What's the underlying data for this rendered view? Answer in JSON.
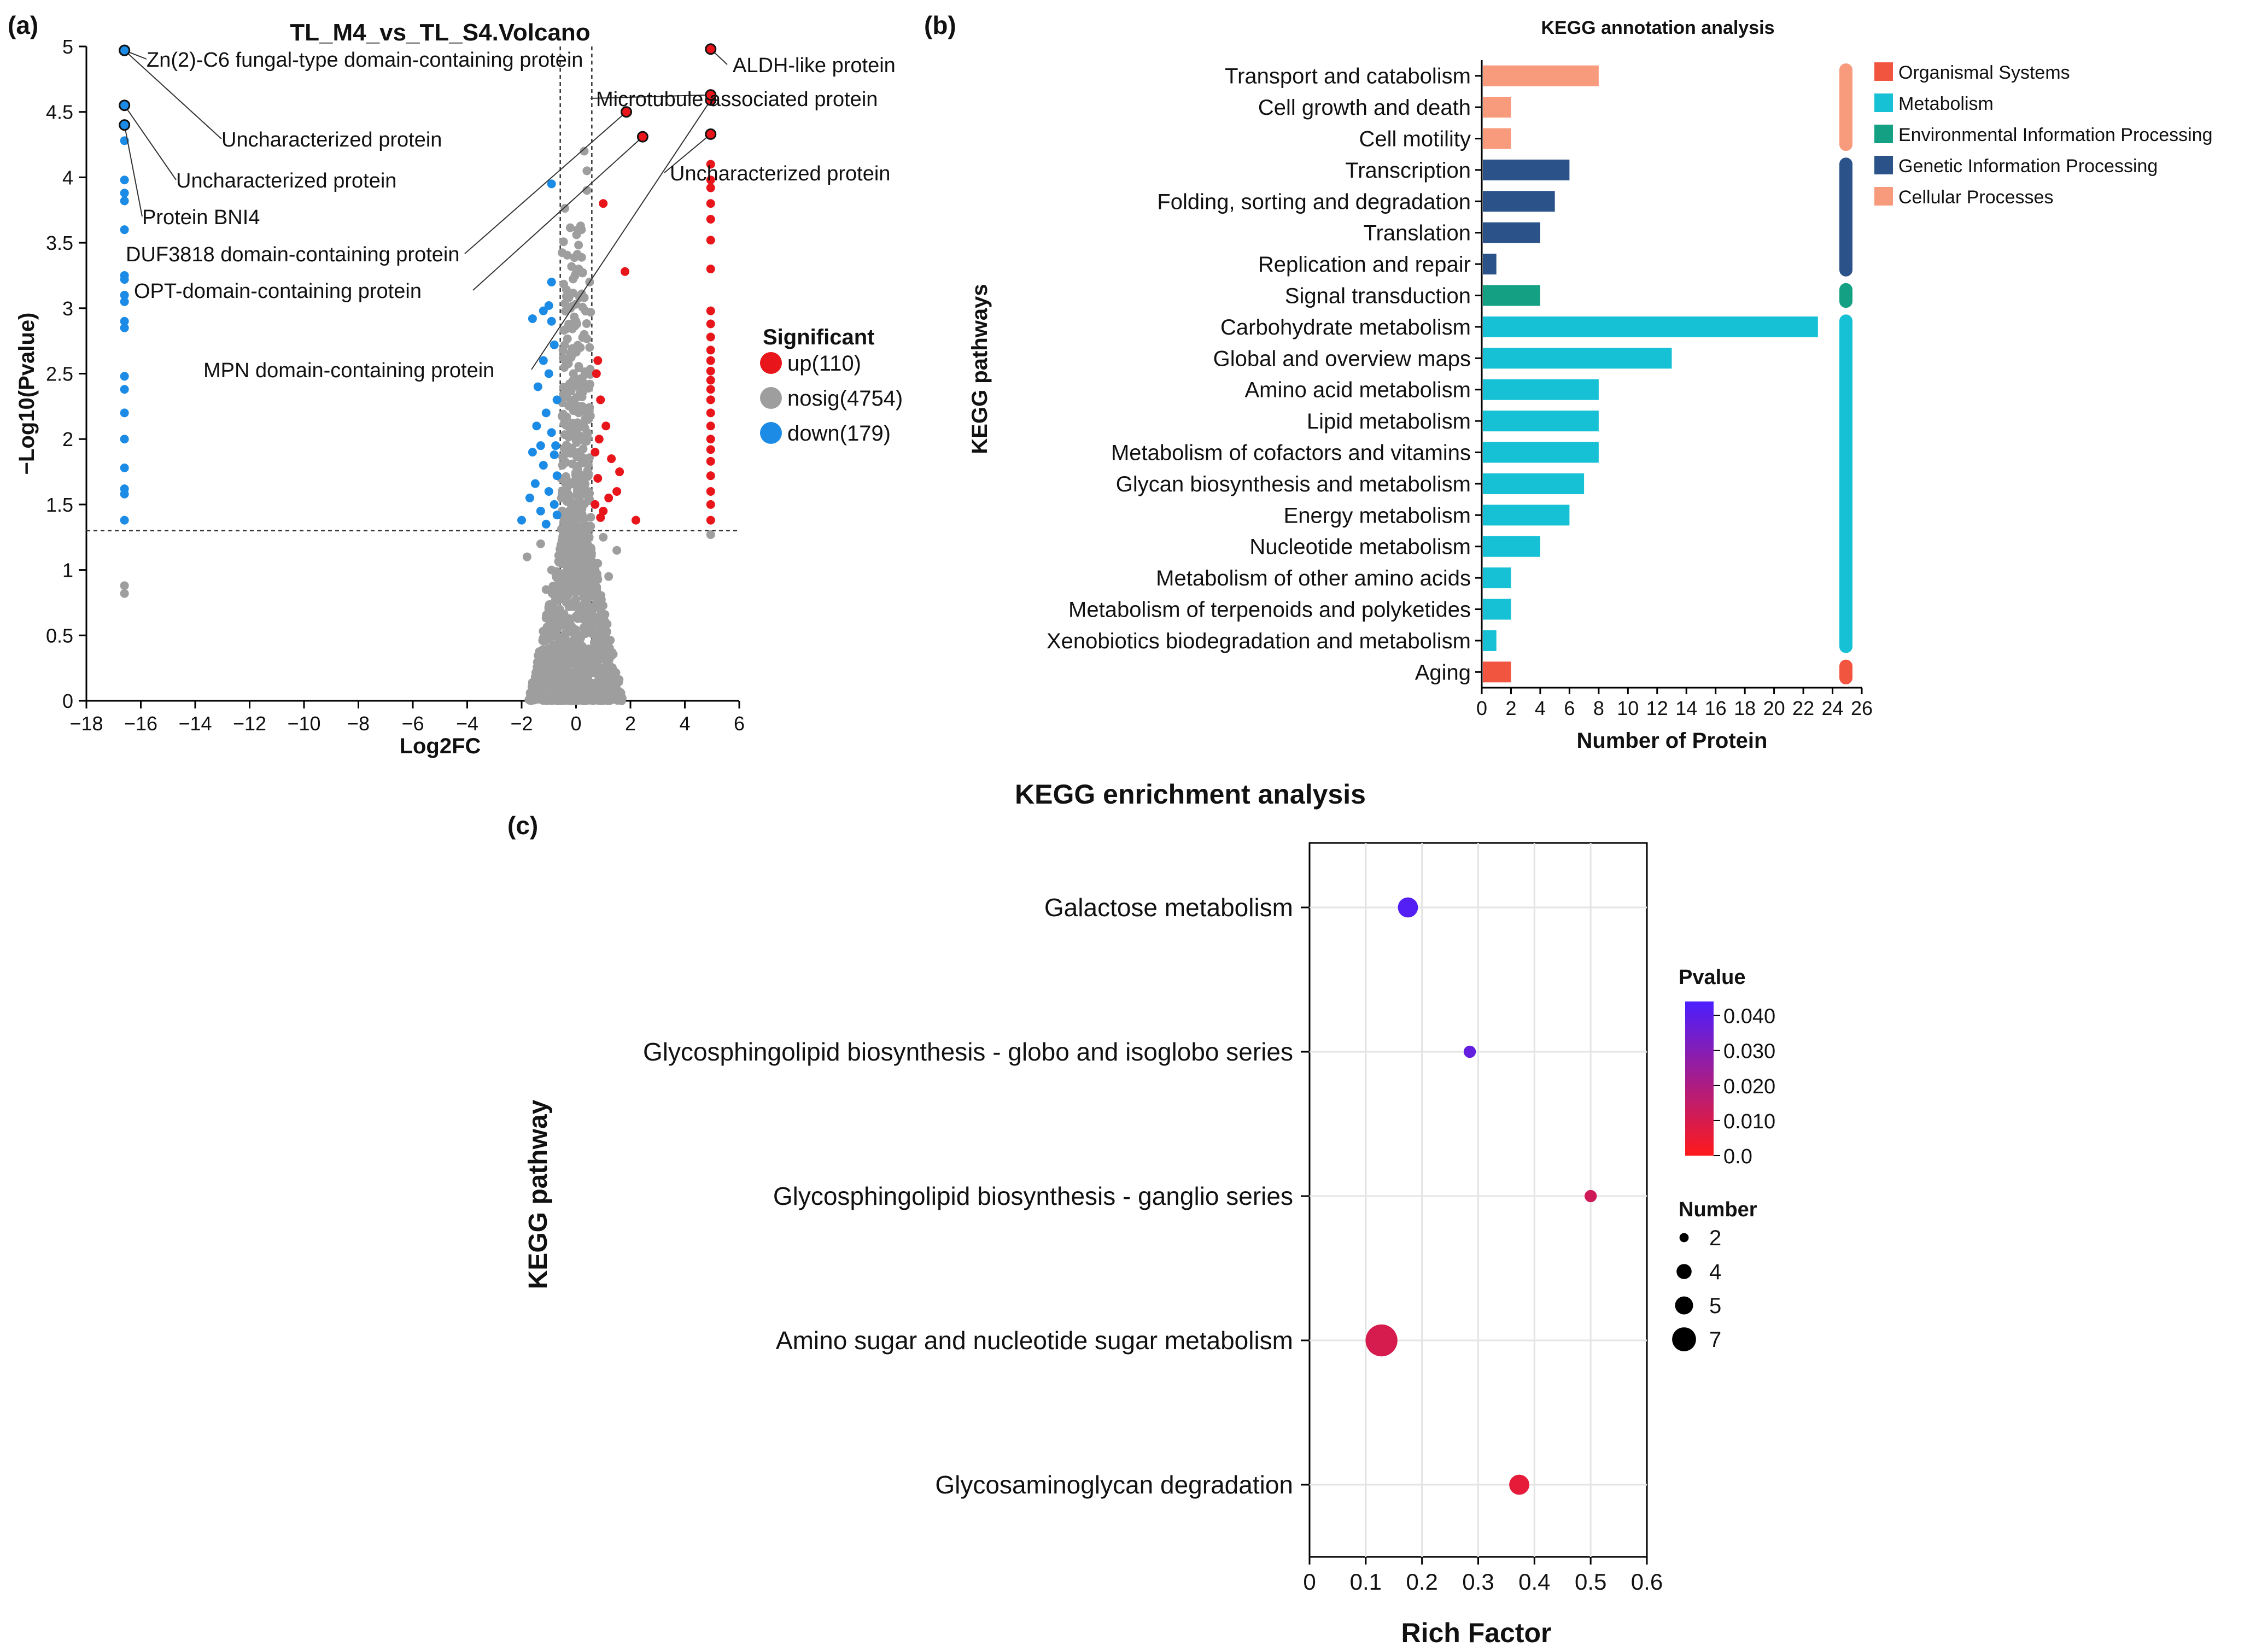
{
  "panels": {
    "a": "(a)",
    "b": "(b)",
    "c": "(c)"
  },
  "colors": {
    "up": "#e8151b",
    "nosig": "#9e9e9e",
    "down": "#1b8be6",
    "organismal": "#f2553f",
    "metabolism": "#16c1d6",
    "environmental": "#14a083",
    "genetic": "#2b5389",
    "cellular": "#f89a7c",
    "grad_low": "#ff1a1a",
    "grad_high": "#4b1fff"
  },
  "chart_data": [
    {
      "id": "volcano",
      "type": "scatter",
      "title": "TL_M4_vs_TL_S4.Volcano",
      "xlabel": "Log2FC",
      "ylabel": "−Log10(Pvalue)",
      "xlim": [
        -18,
        6
      ],
      "ylim": [
        0,
        5
      ],
      "xticks": [
        "−18",
        "−16",
        "−14",
        "−12",
        "−10",
        "−8",
        "−6",
        "−4",
        "−2",
        "0",
        "2",
        "4",
        "6"
      ],
      "yticks": [
        "0",
        "0.5",
        "1",
        "1.5",
        "2",
        "2.5",
        "3",
        "3.5",
        "4",
        "4.5",
        "5"
      ],
      "thresholds": {
        "pvalue_line": 1.3,
        "fc_lines": [
          -0.58,
          0.58
        ]
      },
      "legend_title": "Significant",
      "legend": [
        {
          "key": "up",
          "label": "up(110)"
        },
        {
          "key": "nosig",
          "label": "nosig(4754)"
        },
        {
          "key": "down",
          "label": "down(179)"
        }
      ],
      "series": [
        {
          "name": "down",
          "points": [
            [
              -16.6,
              4.97
            ],
            [
              -16.6,
              4.55
            ],
            [
              -16.6,
              4.4
            ],
            [
              -16.6,
              4.28
            ],
            [
              -16.6,
              3.98
            ],
            [
              -16.6,
              3.88
            ],
            [
              -16.6,
              3.82
            ],
            [
              -16.6,
              3.6
            ],
            [
              -16.6,
              3.25
            ],
            [
              -16.6,
              3.22
            ],
            [
              -16.6,
              3.1
            ],
            [
              -16.6,
              3.05
            ],
            [
              -16.6,
              2.9
            ],
            [
              -16.6,
              2.85
            ],
            [
              -16.6,
              2.48
            ],
            [
              -16.6,
              2.38
            ],
            [
              -16.6,
              2.2
            ],
            [
              -16.6,
              2.0
            ],
            [
              -16.6,
              1.78
            ],
            [
              -16.6,
              1.62
            ],
            [
              -16.6,
              1.58
            ],
            [
              -16.6,
              1.38
            ],
            [
              -0.9,
              3.95
            ],
            [
              -0.9,
              3.2
            ],
            [
              -1.0,
              3.02
            ],
            [
              -1.2,
              2.98
            ],
            [
              -1.6,
              2.92
            ],
            [
              -0.8,
              2.72
            ],
            [
              -1.0,
              2.5
            ],
            [
              -1.4,
              2.4
            ],
            [
              -0.7,
              2.3
            ],
            [
              -1.1,
              2.2
            ],
            [
              -0.9,
              2.05
            ],
            [
              -1.3,
              1.95
            ],
            [
              -0.8,
              1.88
            ],
            [
              -1.2,
              1.8
            ],
            [
              -0.7,
              1.72
            ],
            [
              -1.5,
              1.66
            ],
            [
              -1.0,
              1.6
            ],
            [
              -1.7,
              1.55
            ],
            [
              -0.8,
              1.5
            ],
            [
              -1.3,
              1.45
            ],
            [
              -0.7,
              1.42
            ],
            [
              -2.0,
              1.38
            ],
            [
              -1.1,
              1.35
            ],
            [
              -0.9,
              2.9
            ],
            [
              -1.2,
              2.6
            ],
            [
              -0.75,
              1.95
            ],
            [
              -1.6,
              1.9
            ],
            [
              -1.45,
              2.1
            ]
          ]
        },
        {
          "name": "up",
          "points": [
            [
              4.95,
              4.98
            ],
            [
              4.95,
              4.63
            ],
            [
              4.95,
              4.59
            ],
            [
              4.95,
              4.33
            ],
            [
              4.95,
              4.1
            ],
            [
              4.95,
              3.98
            ],
            [
              4.95,
              3.92
            ],
            [
              4.95,
              3.8
            ],
            [
              4.95,
              3.68
            ],
            [
              4.95,
              3.52
            ],
            [
              4.95,
              3.3
            ],
            [
              4.95,
              2.98
            ],
            [
              4.95,
              2.88
            ],
            [
              4.95,
              2.78
            ],
            [
              4.95,
              2.68
            ],
            [
              4.95,
              2.6
            ],
            [
              4.95,
              2.52
            ],
            [
              4.95,
              2.45
            ],
            [
              4.95,
              2.38
            ],
            [
              4.95,
              2.3
            ],
            [
              4.95,
              2.2
            ],
            [
              4.95,
              2.1
            ],
            [
              4.95,
              2.0
            ],
            [
              4.95,
              1.92
            ],
            [
              4.95,
              1.83
            ],
            [
              4.95,
              1.72
            ],
            [
              4.95,
              1.6
            ],
            [
              4.95,
              1.5
            ],
            [
              4.95,
              1.38
            ],
            [
              1.85,
              4.5
            ],
            [
              2.45,
              4.31
            ],
            [
              1.0,
              3.8
            ],
            [
              1.8,
              3.28
            ],
            [
              0.8,
              2.6
            ],
            [
              0.9,
              2.3
            ],
            [
              1.1,
              2.1
            ],
            [
              0.7,
              1.9
            ],
            [
              1.3,
              1.85
            ],
            [
              0.8,
              1.7
            ],
            [
              1.5,
              1.6
            ],
            [
              0.7,
              1.5
            ],
            [
              1.0,
              1.45
            ],
            [
              0.9,
              1.4
            ],
            [
              2.2,
              1.38
            ],
            [
              1.2,
              1.55
            ],
            [
              0.75,
              2.5
            ],
            [
              1.6,
              1.75
            ],
            [
              0.85,
              2.0
            ]
          ]
        },
        {
          "name": "nosig",
          "points": [
            [
              -16.6,
              0.88
            ],
            [
              -16.6,
              0.82
            ],
            [
              4.95,
              1.27
            ],
            [
              0.3,
              4.2
            ],
            [
              0.4,
              4.05
            ],
            [
              0.2,
              3.6
            ],
            [
              0.1,
              3.3
            ],
            [
              -0.2,
              3.0
            ],
            [
              0.3,
              2.8
            ],
            [
              0.5,
              2.7
            ],
            [
              -0.1,
              2.5
            ],
            [
              0.2,
              2.4
            ],
            [
              0.4,
              3.9
            ],
            [
              0.5,
              3.2
            ],
            [
              0.0,
              2.9
            ],
            [
              -0.4,
              2.6
            ],
            [
              0.1,
              2.2
            ],
            [
              -0.3,
              2.1
            ],
            [
              0.3,
              2.0
            ],
            [
              0.1,
              1.9
            ],
            [
              0.0,
              1.7
            ],
            [
              -0.5,
              1.8
            ],
            [
              0.45,
              1.6
            ],
            [
              0.2,
              1.5
            ],
            [
              -0.2,
              1.4
            ],
            [
              1.0,
              1.25
            ],
            [
              1.5,
              1.15
            ],
            [
              -1.3,
              1.2
            ],
            [
              -1.8,
              1.1
            ],
            [
              0.8,
              1.05
            ],
            [
              -0.9,
              1.0
            ],
            [
              1.2,
              0.95
            ],
            [
              -1.1,
              0.85
            ],
            [
              0.7,
              0.8
            ],
            [
              -0.6,
              0.7
            ],
            [
              0.5,
              0.6
            ],
            [
              -0.8,
              0.55
            ],
            [
              0.9,
              0.5
            ],
            [
              -0.5,
              0.45
            ],
            [
              0.6,
              0.4
            ],
            [
              -0.4,
              0.35
            ],
            [
              0.4,
              0.3
            ],
            [
              0.25,
              0.2
            ],
            [
              -0.25,
              0.15
            ],
            [
              0.1,
              0.1
            ],
            [
              0.0,
              0.05
            ]
          ]
        }
      ],
      "annotations": [
        {
          "label": "Zn(2)-C6 fungal-type domain-containing protein",
          "x": -16.6,
          "y": 4.97
        },
        {
          "label": "Uncharacterized protein",
          "x": -16.6,
          "y": 4.97
        },
        {
          "label": "Uncharacterized protein",
          "x": -16.6,
          "y": 4.55
        },
        {
          "label": "Protein BNI4",
          "x": -16.6,
          "y": 4.4
        },
        {
          "label": "DUF3818 domain-containing protein",
          "x": 1.85,
          "y": 4.5
        },
        {
          "label": "OPT-domain-containing protein",
          "x": 2.45,
          "y": 4.31
        },
        {
          "label": "MPN domain-containing protein",
          "x": 4.95,
          "y": 4.59
        },
        {
          "label": "ALDH-like protein",
          "x": 4.95,
          "y": 4.98
        },
        {
          "label": "Microtubule associated protein",
          "x": 4.95,
          "y": 4.63
        },
        {
          "label": "Uncharacterized protein",
          "x": 4.95,
          "y": 4.33
        }
      ]
    },
    {
      "id": "annotation",
      "type": "bar",
      "orientation": "horizontal",
      "title": "KEGG annotation analysis",
      "xlabel": "Number of Protein",
      "ylabel": "KEGG pathways",
      "xlim": [
        0,
        26
      ],
      "xticks": [
        "0",
        "2",
        "4",
        "6",
        "8",
        "10",
        "12",
        "14",
        "16",
        "18",
        "20",
        "22",
        "24",
        "26"
      ],
      "categories": [
        "Transport and catabolism",
        "Cell growth and death",
        "Cell motility",
        "Transcription",
        "Folding, sorting and degradation",
        "Translation",
        "Replication and repair",
        "Signal transduction",
        "Carbohydrate metabolism",
        "Global and overview maps",
        "Amino acid metabolism",
        "Lipid metabolism",
        "Metabolism of cofactors and vitamins",
        "Glycan biosynthesis and metabolism",
        "Energy metabolism",
        "Nucleotide metabolism",
        "Metabolism of other amino acids",
        "Metabolism of terpenoids and polyketides",
        "Xenobiotics biodegradation and metabolism",
        "Aging"
      ],
      "values": [
        8,
        2,
        2,
        6,
        5,
        4,
        1,
        4,
        23,
        13,
        8,
        8,
        8,
        7,
        6,
        4,
        2,
        2,
        1,
        2
      ],
      "groups": [
        "cellular",
        "cellular",
        "cellular",
        "genetic",
        "genetic",
        "genetic",
        "genetic",
        "environmental",
        "metabolism",
        "metabolism",
        "metabolism",
        "metabolism",
        "metabolism",
        "metabolism",
        "metabolism",
        "metabolism",
        "metabolism",
        "metabolism",
        "metabolism",
        "organismal"
      ],
      "legend": [
        {
          "key": "organismal",
          "label": "Organismal Systems"
        },
        {
          "key": "metabolism",
          "label": "Metabolism"
        },
        {
          "key": "environmental",
          "label": "Environmental Information Processing"
        },
        {
          "key": "genetic",
          "label": "Genetic Information Processing"
        },
        {
          "key": "cellular",
          "label": "Cellular Processes"
        }
      ]
    },
    {
      "id": "enrichment",
      "type": "scatter",
      "title": "KEGG enrichment analysis",
      "xlabel": "Rich Factor",
      "ylabel": "KEGG pathway",
      "xlim": [
        0,
        0.6
      ],
      "xticks": [
        "0",
        "0.1",
        "0.2",
        "0.3",
        "0.4",
        "0.5",
        "0.6"
      ],
      "categories": [
        "Galactose metabolism",
        "Glycosphingolipid biosynthesis - globo and isoglobo series",
        "Glycosphingolipid biosynthesis - ganglio series",
        "Amino sugar and nucleotide sugar metabolism",
        "Glycosaminoglycan degradation"
      ],
      "rich_factor": [
        0.175,
        0.285,
        0.5,
        0.128,
        0.373
      ],
      "number": [
        4,
        2,
        2,
        7,
        4
      ],
      "pvalue": [
        0.042,
        0.038,
        0.012,
        0.01,
        0.006
      ],
      "color_legend_title": "Pvalue",
      "color_ticks": [
        "0.040",
        "0.030",
        "0.020",
        "0.010",
        "0.0"
      ],
      "color_range": [
        0,
        0.044
      ],
      "size_legend_title": "Number",
      "size_legend": [
        "2",
        "4",
        "5",
        "7"
      ]
    }
  ]
}
